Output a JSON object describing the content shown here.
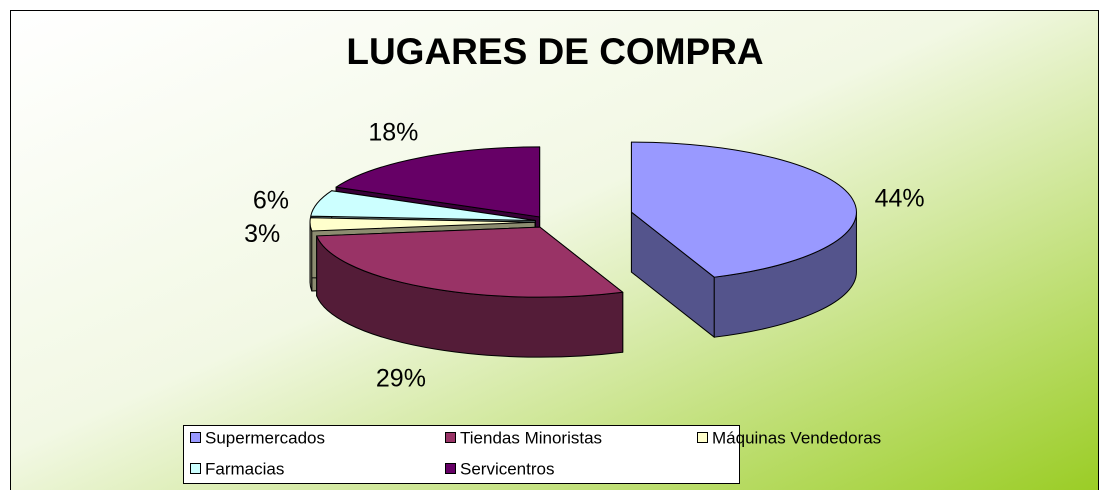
{
  "chart_data": {
    "type": "pie3d",
    "title": "LUGARES DE COMPRA",
    "categories": [
      "Supermercados",
      "Tiendas Minoristas",
      "Máquinas Vendedoras",
      "Farmacias",
      "Servicentros"
    ],
    "values": [
      44,
      29,
      3,
      6,
      18
    ],
    "value_labels": [
      "44%",
      "29%",
      "3%",
      "6%",
      "18%"
    ],
    "colors": [
      "#9999ff",
      "#993366",
      "#ffffcc",
      "#ccffff",
      "#660066"
    ],
    "legend": "bottom"
  }
}
